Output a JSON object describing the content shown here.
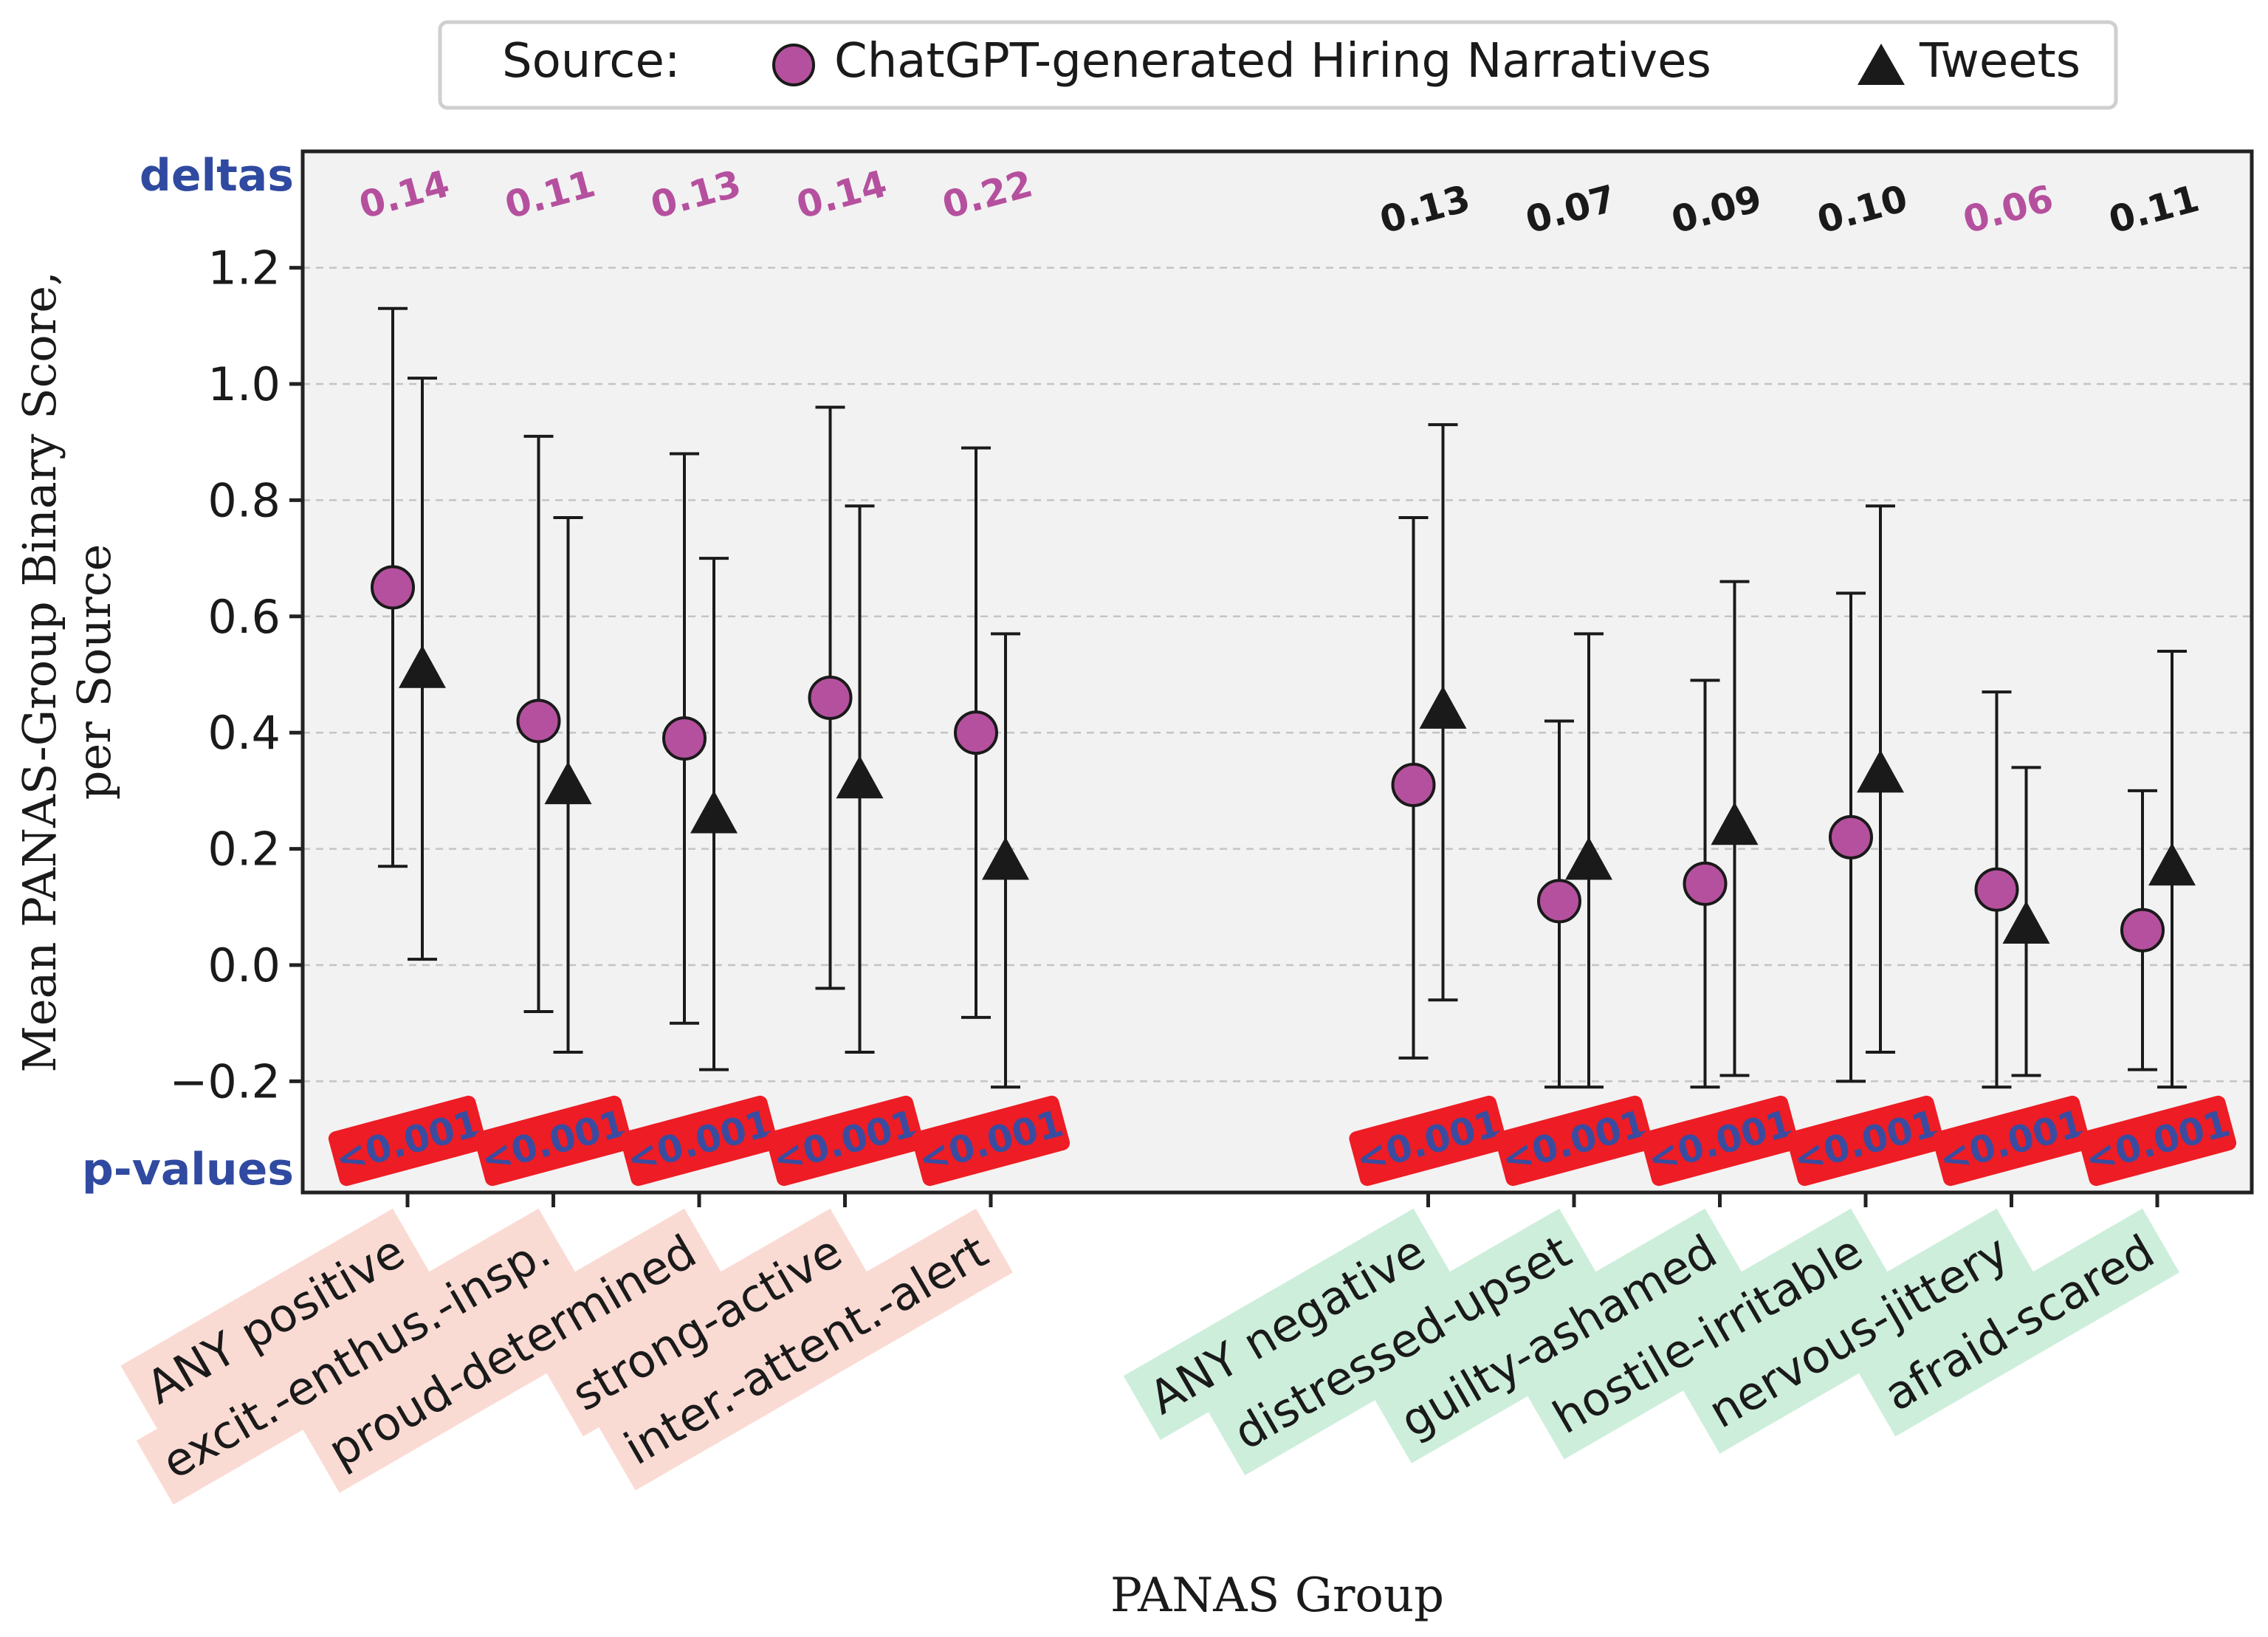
{
  "chart_data": {
    "type": "scatter",
    "title": "",
    "xlabel": "PANAS Group",
    "ylabel_lines": [
      "Mean PANAS-Group Binary Score,",
      "per Source"
    ],
    "ylim": [
      -0.35,
      1.35
    ],
    "yticks": [
      -0.2,
      0.0,
      0.2,
      0.4,
      0.6,
      0.8,
      1.0,
      1.2
    ],
    "ytick_labels": [
      "−0.2",
      "0.0",
      "0.2",
      "0.4",
      "0.6",
      "0.8",
      "1.0",
      "1.2"
    ],
    "grid": "y-dashed",
    "legend": {
      "position": "top",
      "title": "Source:",
      "entries": [
        {
          "name": "ChatGPT-generated Hiring Narratives",
          "marker": "circle",
          "color": "#b5509e"
        },
        {
          "name": "Tweets",
          "marker": "triangle",
          "color": "#222222"
        }
      ]
    },
    "row_labels": {
      "deltas": "deltas",
      "pvalues": "p-values"
    },
    "categories": [
      "ANY positive",
      "excit.-enthus.-insp.",
      "proud-determined",
      "strong-active",
      "inter.-attent.-alert",
      "ANY negative",
      "distressed-upset",
      "guilty-ashamed",
      "hostile-irritable",
      "nervous-jittery",
      "afraid-scared"
    ],
    "category_x": [
      1,
      2,
      3,
      4,
      5,
      8,
      9,
      10,
      11,
      12,
      13
    ],
    "category_group": [
      "positive",
      "positive",
      "positive",
      "positive",
      "positive",
      "negative",
      "negative",
      "negative",
      "negative",
      "negative",
      "negative"
    ],
    "series": [
      {
        "name": "ChatGPT-generated Hiring Narratives",
        "values": [
          0.65,
          0.42,
          0.39,
          0.46,
          0.4,
          0.31,
          0.11,
          0.14,
          0.22,
          0.13,
          0.06
        ],
        "err_low": [
          0.17,
          -0.08,
          -0.1,
          -0.04,
          -0.09,
          -0.16,
          -0.21,
          -0.21,
          -0.2,
          -0.21,
          -0.18
        ],
        "err_high": [
          1.13,
          0.91,
          0.88,
          0.96,
          0.89,
          0.77,
          0.42,
          0.49,
          0.64,
          0.47,
          0.3
        ]
      },
      {
        "name": "Tweets",
        "values": [
          0.51,
          0.31,
          0.26,
          0.32,
          0.18,
          0.44,
          0.18,
          0.24,
          0.33,
          0.07,
          0.17
        ],
        "err_low": [
          0.01,
          -0.15,
          -0.18,
          -0.15,
          -0.21,
          -0.06,
          -0.21,
          -0.19,
          -0.15,
          -0.19,
          -0.21
        ],
        "err_high": [
          1.01,
          0.77,
          0.7,
          0.79,
          0.57,
          0.93,
          0.57,
          0.66,
          0.79,
          0.34,
          0.54
        ]
      }
    ],
    "deltas": [
      "0.14",
      "0.11",
      "0.13",
      "0.14",
      "0.22",
      "0.13",
      "0.07",
      "0.09",
      "0.10",
      "0.06",
      "0.11"
    ],
    "delta_color_source": [
      "narratives",
      "narratives",
      "narratives",
      "narratives",
      "narratives",
      "tweets",
      "tweets",
      "tweets",
      "tweets",
      "narratives",
      "tweets"
    ],
    "pvalues": [
      "<0.001",
      "<0.001",
      "<0.001",
      "<0.001",
      "<0.001",
      "<0.001",
      "<0.001",
      "<0.001",
      "<0.001",
      "<0.001",
      "<0.001"
    ],
    "colors": {
      "narratives": "#b5509e",
      "tweets": "#1a1a1a",
      "pvalue_bg": "#ee1c24",
      "pvalue_text": "#3a4ca0",
      "row_label": "#2f4aa0",
      "positive_label_bg": "#fadbd4",
      "negative_label_bg": "#cdeedb",
      "plot_bg": "#f2f2f2"
    }
  }
}
